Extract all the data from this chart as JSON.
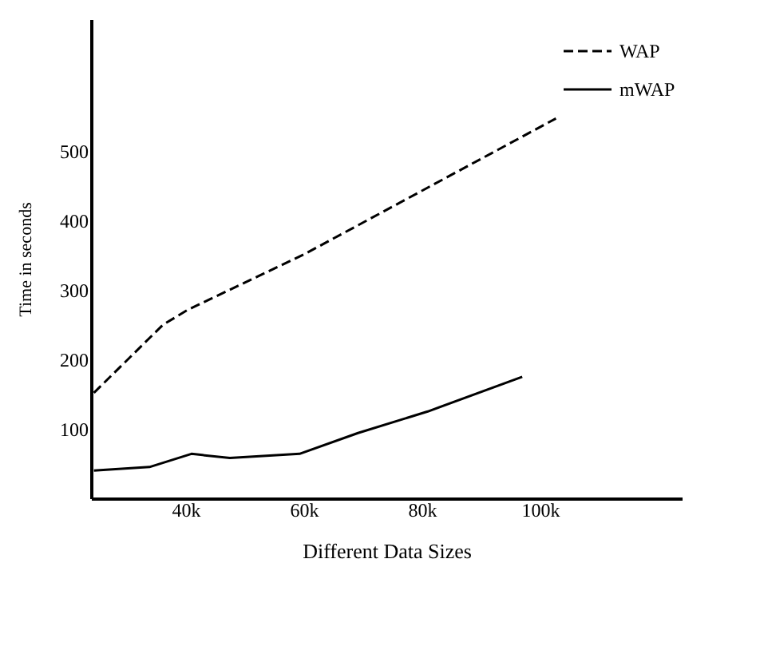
{
  "chart_data": {
    "type": "line",
    "xlabel": "Different Data Sizes",
    "ylabel": "Time in seconds",
    "xlim": [
      24,
      124
    ],
    "xticks": [
      {
        "value": 40,
        "label": "40k"
      },
      {
        "value": 60,
        "label": "60k"
      },
      {
        "value": 80,
        "label": "80k"
      },
      {
        "value": 100,
        "label": "100k"
      }
    ],
    "ylim": [
      0,
      690
    ],
    "yticks": [
      100,
      200,
      300,
      400,
      500
    ],
    "legend": "top right",
    "grid": false,
    "series": [
      {
        "name": "WAP",
        "color": "#000000",
        "line_style": "dashed",
        "x": [
          24.5,
          36.2,
          40.5,
          60,
          102.7
        ],
        "values": [
          152,
          250,
          272,
          351,
          547
        ]
      },
      {
        "name": "mWAP",
        "color": "#000000",
        "line_style": "solid",
        "x": [
          24.5,
          33.9,
          41,
          47.5,
          59.3,
          69.2,
          81,
          97
        ],
        "values": [
          40,
          45,
          64,
          58,
          64,
          94,
          125,
          175
        ]
      }
    ]
  }
}
